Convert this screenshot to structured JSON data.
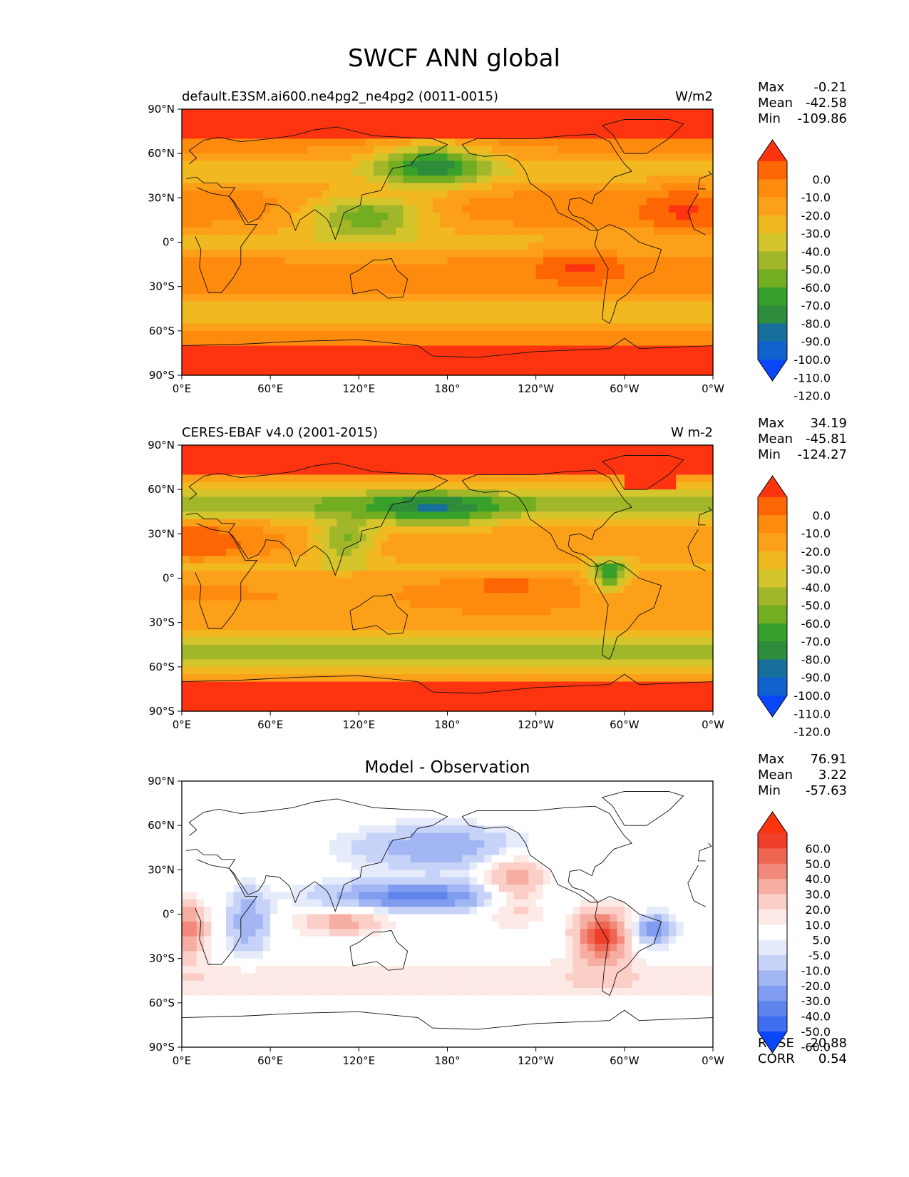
{
  "figure_title": "SWCF ANN global",
  "colors": {
    "abs": [
      "#0a47fb",
      "#0f62cb",
      "#17709c",
      "#2e8d3b",
      "#37a12b",
      "#73ad21",
      "#a2b62a",
      "#d4c52c",
      "#f2b820",
      "#fda019",
      "#fe8b0e",
      "#fe6603",
      "#fe3410"
    ],
    "diff": [
      "#0a47fb",
      "#3f6ff0",
      "#5e84ec",
      "#7f9cf0",
      "#a2b6f3",
      "#c6d2f8",
      "#e6ebfc",
      "#ffffff",
      "#fde9e6",
      "#fbcfc8",
      "#f7aea2",
      "#f2897a",
      "#ee6552",
      "#f03f2a",
      "#fe3410"
    ]
  },
  "panels": [
    {
      "id": "model",
      "left_title": "default.E3SM.ai600.ne4pg2_ne4pg2 (0011-0015)",
      "center_title": "",
      "units": "W/m2",
      "stats": [
        {
          "label": "Max",
          "value": "-0.21"
        },
        {
          "label": "Mean",
          "value": "-42.58"
        },
        {
          "label": "Min",
          "value": "-109.86"
        }
      ],
      "colorbar": {
        "scheme": "abs",
        "labels": [
          "0.0",
          "-10.0",
          "-20.0",
          "-30.0",
          "-40.0",
          "-50.0",
          "-60.0",
          "-70.0",
          "-80.0",
          "-90.0",
          "-100.0",
          "-110.0",
          "-120.0"
        ]
      },
      "extra": []
    },
    {
      "id": "obs",
      "left_title": "CERES-EBAF v4.0 (2001-2015)",
      "center_title": "",
      "units": "W m-2",
      "stats": [
        {
          "label": "Max",
          "value": "34.19"
        },
        {
          "label": "Mean",
          "value": "-45.81"
        },
        {
          "label": "Min",
          "value": "-124.27"
        }
      ],
      "colorbar": {
        "scheme": "abs",
        "labels": [
          "0.0",
          "-10.0",
          "-20.0",
          "-30.0",
          "-40.0",
          "-50.0",
          "-60.0",
          "-70.0",
          "-80.0",
          "-90.0",
          "-100.0",
          "-110.0",
          "-120.0"
        ]
      },
      "extra": []
    },
    {
      "id": "diff",
      "left_title": "",
      "center_title": "Model - Observation",
      "units": "",
      "stats": [
        {
          "label": "Max",
          "value": "76.91"
        },
        {
          "label": "Mean",
          "value": "3.22"
        },
        {
          "label": "Min",
          "value": "-57.63"
        }
      ],
      "colorbar": {
        "scheme": "diff",
        "labels": [
          "60.0",
          "50.0",
          "40.0",
          "30.0",
          "20.0",
          "10.0",
          "5.0",
          "-5.0",
          "-10.0",
          "-20.0",
          "-30.0",
          "-40.0",
          "-50.0",
          "-60.0"
        ]
      },
      "extra": [
        {
          "label": "RMSE",
          "value": "20.88"
        },
        {
          "label": "CORR",
          "value": "0.54"
        }
      ]
    }
  ],
  "chart_data": {
    "type": "heatmap",
    "title": "SWCF ANN global",
    "x_ticks": [
      "0°E",
      "60°E",
      "120°E",
      "180°",
      "120°W",
      "60°W",
      "0°W"
    ],
    "y_ticks": [
      "90°N",
      "60°N",
      "30°N",
      "0°",
      "30°S",
      "60°S",
      "90°S"
    ],
    "x_range_deg": [
      0,
      360
    ],
    "y_range_deg": [
      -90,
      90
    ],
    "levels_abs": [
      0,
      -10,
      -20,
      -30,
      -40,
      -50,
      -60,
      -70,
      -80,
      -90,
      -100,
      -110,
      -120
    ],
    "levels_diff": [
      60,
      50,
      40,
      30,
      20,
      10,
      5,
      -5,
      -10,
      -20,
      -30,
      -40,
      -50,
      -60
    ]
  }
}
